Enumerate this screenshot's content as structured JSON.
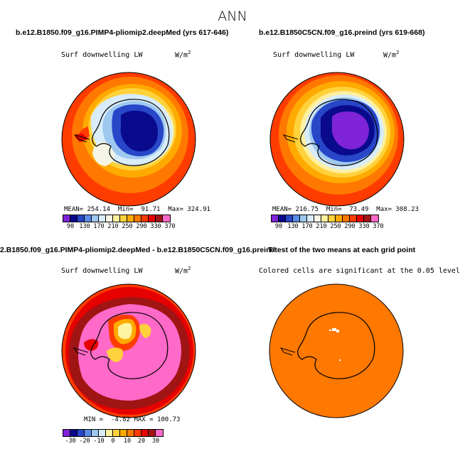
{
  "main_title": "ANN",
  "panels": [
    {
      "title": "b.e12.B1850.f09_g16.PIMP4-pliomip2.deepMed (yrs 617-646)",
      "var_label": "Surf downwelling LW",
      "units_base": "W/m",
      "units_exp": "2",
      "stats": "MEAN= 254.14  Min=  91.71  Max= 324.91",
      "legend_labels": [
        "90",
        "130",
        "170",
        "210",
        "250",
        "290",
        "330",
        "370"
      ]
    },
    {
      "title": "b.e12.B1850C5CN.f09_g16.preind (yrs 619-668)",
      "var_label": "Surf downwelling LW",
      "units_base": "W/m",
      "units_exp": "2",
      "stats": "MEAN= 216.75  Min=  73.49  Max= 308.23",
      "legend_labels": [
        "90",
        "130",
        "170",
        "210",
        "250",
        "290",
        "330",
        "370"
      ]
    },
    {
      "title": "2.B1850.f09_g16.PIMP4-pliomip2.deepMed - b.e12.B1850C5CN.f09_g16.preind",
      "var_label": "Surf downwelling LW",
      "units_base": "W/m",
      "units_exp": "2",
      "stats": "MIN =  -4.82 MAX = 100.73",
      "legend_labels": [
        "-30",
        "-20",
        "-10",
        "0",
        "10",
        "20",
        "30"
      ]
    },
    {
      "title": "T-test of the two means at each grid point",
      "var_label": "Colored cells are significant at the 0.05 level"
    }
  ],
  "colors": {
    "abs_scale": [
      "#7f23d8",
      "#0a0a8c",
      "#2846c8",
      "#5a8ce6",
      "#9ec8f0",
      "#d8ecfa",
      "#f5f5e6",
      "#fff0a0",
      "#ffd23c",
      "#ffaa00",
      "#ff7800",
      "#ff3c00",
      "#e60000",
      "#a01414",
      "#ff69c8"
    ],
    "diff_scale": [
      "#7f23d8",
      "#0a0a8c",
      "#2846c8",
      "#5a8ce6",
      "#9ec8f0",
      "#d8ecfa",
      "#fff5a0",
      "#ffd23c",
      "#ffaa00",
      "#ff7800",
      "#ff3c00",
      "#e60000",
      "#a01414",
      "#ff69c8"
    ],
    "ttest_fill": "#ff7800"
  },
  "chart_data": [
    {
      "type": "heatmap",
      "projection": "south polar stereographic",
      "title": "b.e12.B1850.f09_g16.PIMP4-pliomip2.deepMed (yrs 617-646)",
      "variable": "Surf downwelling LW",
      "units": "W/m2",
      "mean": 254.14,
      "min": 91.71,
      "max": 324.91,
      "contour_levels": [
        90,
        110,
        130,
        150,
        170,
        190,
        210,
        230,
        250,
        270,
        290,
        310,
        330,
        350,
        370
      ]
    },
    {
      "type": "heatmap",
      "projection": "south polar stereographic",
      "title": "b.e12.B1850C5CN.f09_g16.preind (yrs 619-668)",
      "variable": "Surf downwelling LW",
      "units": "W/m2",
      "mean": 216.75,
      "min": 73.49,
      "max": 308.23,
      "contour_levels": [
        90,
        110,
        130,
        150,
        170,
        190,
        210,
        230,
        250,
        270,
        290,
        310,
        330,
        350,
        370
      ]
    },
    {
      "type": "heatmap",
      "projection": "south polar stereographic",
      "title": "2.B1850.f09_g16.PIMP4-pliomip2.deepMed - b.e12.B1850C5CN.f09_g16.preind",
      "variable": "Surf downwelling LW",
      "units": "W/m2",
      "min": -4.82,
      "max": 100.73,
      "contour_levels": [
        -30,
        -25,
        -20,
        -15,
        -10,
        -5,
        0,
        5,
        10,
        15,
        20,
        25,
        30
      ]
    },
    {
      "type": "heatmap",
      "projection": "south polar stereographic",
      "title": "T-test of the two means at each grid point",
      "annotation": "Colored cells are significant at the 0.05 level"
    }
  ]
}
